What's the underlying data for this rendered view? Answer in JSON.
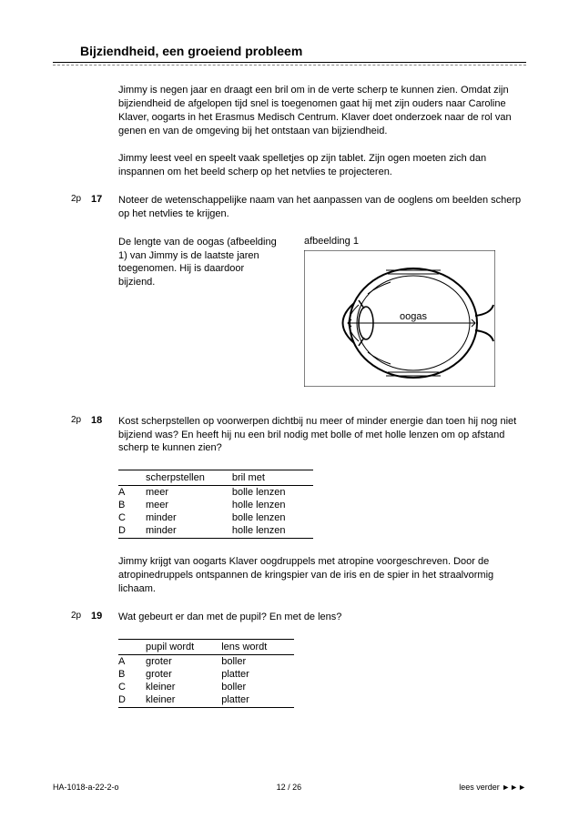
{
  "title": "Bijziendheid, een groeiend probleem",
  "intro1": "Jimmy is negen jaar en draagt een bril om in de verte scherp te kunnen zien. Omdat zijn bijziendheid de afgelopen tijd snel is toegenomen gaat hij met zijn ouders naar Caroline Klaver, oogarts in het Erasmus Medisch Centrum. Klaver doet onderzoek naar de rol van genen en van de omgeving bij het ontstaan van bijziendheid.",
  "intro2": "Jimmy leest veel en speelt vaak spelletjes op zijn tablet. Zijn ogen moeten zich dan inspannen om het beeld scherp op het netvlies te projecteren.",
  "q17": {
    "pts": "2p",
    "num": "17",
    "text": "Noteer de wetenschappelijke naam van het aanpassen van de ooglens om beelden scherp op het netvlies te krijgen."
  },
  "figtext": "De lengte van de oogas (afbeelding 1) van Jimmy is de laatste jaren toegenomen. Hij is daardoor bijziend.",
  "figcaption": "afbeelding 1",
  "eyelabel": "oogas",
  "q18": {
    "pts": "2p",
    "num": "18",
    "text": "Kost scherpstellen op voorwerpen dichtbij nu meer of minder energie dan toen hij nog niet bijziend was? En heeft hij nu een bril nodig met bolle of met holle lenzen om op afstand scherp te kunnen zien?",
    "head1": "scherpstellen",
    "head2": "bril met",
    "rows": [
      {
        "o": "A",
        "c1": "meer",
        "c2": "bolle lenzen"
      },
      {
        "o": "B",
        "c1": "meer",
        "c2": "holle lenzen"
      },
      {
        "o": "C",
        "c1": "minder",
        "c2": "bolle lenzen"
      },
      {
        "o": "D",
        "c1": "minder",
        "c2": "holle lenzen"
      }
    ]
  },
  "intro3": "Jimmy krijgt van oogarts Klaver oogdruppels met atropine voorgeschreven. Door de atropinedruppels ontspannen de kringspier van de iris en de spier in het straalvormig lichaam.",
  "q19": {
    "pts": "2p",
    "num": "19",
    "text": "Wat gebeurt er dan met de pupil? En met de lens?",
    "head1": "pupil wordt",
    "head2": "lens wordt",
    "rows": [
      {
        "o": "A",
        "c1": "groter",
        "c2": "boller"
      },
      {
        "o": "B",
        "c1": "groter",
        "c2": "platter"
      },
      {
        "o": "C",
        "c1": "kleiner",
        "c2": "boller"
      },
      {
        "o": "D",
        "c1": "kleiner",
        "c2": "platter"
      }
    ]
  },
  "footer": {
    "left": "HA-1018-a-22-2-o",
    "center": "12 / 26",
    "right": "lees verder ►►►"
  }
}
